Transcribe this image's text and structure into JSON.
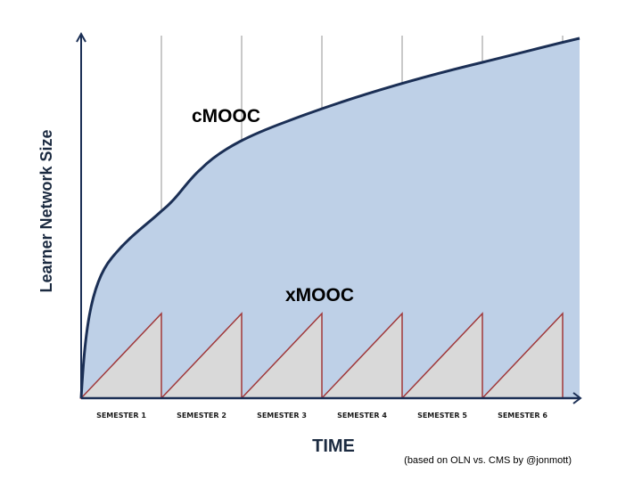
{
  "diagram": {
    "y_axis_label": "Learner Network Size",
    "x_axis_label": "TIME",
    "curve_label_cmooc": "cMOOC",
    "curve_label_xmooc": "xMOOC",
    "semesters": [
      "SEMESTER 1",
      "SEMESTER 2",
      "SEMESTER 3",
      "SEMESTER 4",
      "SEMESTER 5",
      "SEMESTER 6"
    ],
    "credit": "(based on OLN vs. CMS by @jonmott)",
    "colors": {
      "cmooc_fill": "#bed0e7",
      "cmooc_line": "#1b2f55",
      "xmooc_fill": "#d9d9d9",
      "xmooc_line": "#a0383a",
      "axis": "#1b2f55",
      "gridline": "#b7b7b7"
    }
  }
}
